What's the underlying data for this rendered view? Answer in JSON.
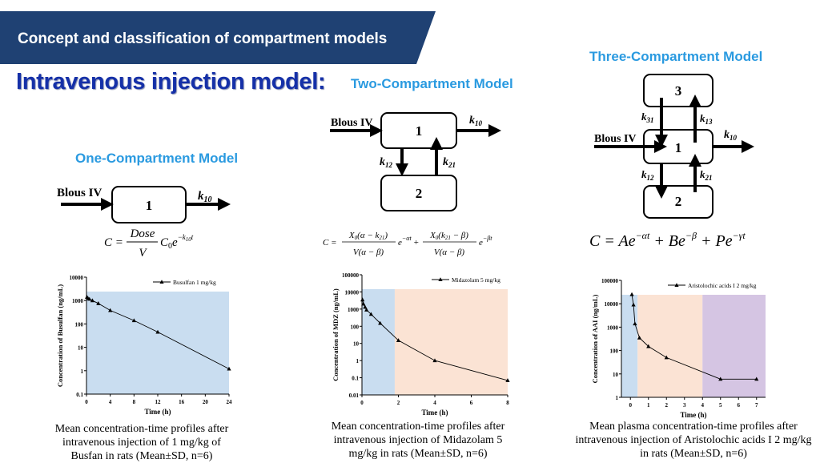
{
  "header": {
    "banner_title": "Concept and classification of compartment models",
    "main_title": "Intravenous injection model:",
    "colors": {
      "banner": "#1f4173",
      "main_title": "#1530a8",
      "model_title": "#2a9ae0"
    }
  },
  "models": {
    "one": {
      "title": "One-Compartment Model",
      "input_label": "Blous IV",
      "compartment": "1",
      "k10": "k10",
      "equation": "C = (Dose/V) C0 e^(-k10 t)",
      "caption": "Mean concentration-time profiles after intravenous injection of 1 mg/kg of Busfan in rats (Mean±SD, n=6)"
    },
    "two": {
      "title": "Two-Compartment Model",
      "input_label": "Blous IV",
      "compartments": [
        "1",
        "2"
      ],
      "k10": "k10",
      "k12": "k12",
      "k21": "k21",
      "equation": "C = X0(α−k21)/(V(α−β)) e^(−αt) + X0(k21−β)/(V(α−β)) e^(−βt)",
      "caption": "Mean concentration-time profiles after intravenous injection of Midazolam 5 mg/kg in rats (Mean±SD, n=6)"
    },
    "three": {
      "title": "Three-Compartment Model",
      "input_label": "Blous IV",
      "compartments": [
        "3",
        "1",
        "2"
      ],
      "k10": "k10",
      "k31": "k31",
      "k13": "k13",
      "k12": "k12",
      "k21": "k21",
      "equation": "C = Ae^(−αt) + Be^(−β) + Pe^(−γt)",
      "caption": "Mean plasma concentration-time profiles after intravenous injection of Aristolochic acids I 2 mg/kg in rats (Mean±SD, n=6)"
    }
  },
  "chart_data": [
    {
      "type": "line",
      "title": "",
      "series": [
        {
          "name": "Busulfan 1 mg/kg",
          "x": [
            0.08,
            0.25,
            0.5,
            1,
            2,
            4,
            8,
            12,
            24
          ],
          "y": [
            1400,
            1250,
            1150,
            1000,
            750,
            380,
            140,
            45,
            1.2
          ]
        }
      ],
      "xlabel": "Time (h)",
      "ylabel": "Concentration of Busulfan (ng/mL)",
      "xlim": [
        0,
        24
      ],
      "x_ticks": [
        0,
        4,
        8,
        12,
        16,
        20,
        24
      ],
      "ylim": [
        0.1,
        10000
      ],
      "y_scale": "log",
      "y_ticks": [
        "0.1",
        "1",
        "10",
        "100",
        "1000",
        "10000"
      ],
      "phases": [
        {
          "from": 0,
          "to": 24,
          "color": "#c9ddf0"
        }
      ],
      "legend": "top-right"
    },
    {
      "type": "line",
      "title": "",
      "series": [
        {
          "name": "Midazolam 5 mg/kg",
          "x": [
            0.03,
            0.08,
            0.17,
            0.25,
            0.5,
            1,
            2,
            4,
            8
          ],
          "y": [
            3500,
            2000,
            1300,
            900,
            500,
            150,
            15,
            1,
            0.07
          ]
        }
      ],
      "xlabel": "Time (h)",
      "ylabel": "Concentration of MDZ (ng/mL)",
      "xlim": [
        0,
        8
      ],
      "x_ticks": [
        0,
        2,
        4,
        6,
        8
      ],
      "ylim": [
        0.01,
        100000
      ],
      "y_scale": "log",
      "y_ticks": [
        "0.01",
        "0.1",
        "1",
        "10",
        "100",
        "1000",
        "10000",
        "100000"
      ],
      "phases": [
        {
          "from": 0,
          "to": 1.8,
          "color": "#c9ddf0"
        },
        {
          "from": 1.8,
          "to": 8,
          "color": "#fbe3d4"
        }
      ],
      "legend": "top-right"
    },
    {
      "type": "line",
      "title": "",
      "series": [
        {
          "name": "Aristolochic acids I 2 mg/kg",
          "x": [
            0.08,
            0.17,
            0.25,
            0.5,
            1,
            2,
            5,
            7
          ],
          "y": [
            25000,
            9000,
            1400,
            350,
            150,
            50,
            6,
            6
          ]
        }
      ],
      "xlabel": "Time (h)",
      "ylabel": "Concentration of AAI (ng/mL)",
      "xlim": [
        -0.5,
        7.5
      ],
      "x_ticks": [
        0,
        1,
        2,
        3,
        4,
        5,
        6,
        7
      ],
      "ylim": [
        1,
        100000
      ],
      "y_scale": "log",
      "y_ticks": [
        "1",
        "10",
        "100",
        "1000",
        "10000",
        "100000"
      ],
      "phases": [
        {
          "from": -0.5,
          "to": 0.4,
          "color": "#c9ddf0"
        },
        {
          "from": 0.4,
          "to": 4,
          "color": "#fbe3d4"
        },
        {
          "from": 4,
          "to": 7.5,
          "color": "#d5c5e3"
        }
      ],
      "legend": "top-right"
    }
  ]
}
